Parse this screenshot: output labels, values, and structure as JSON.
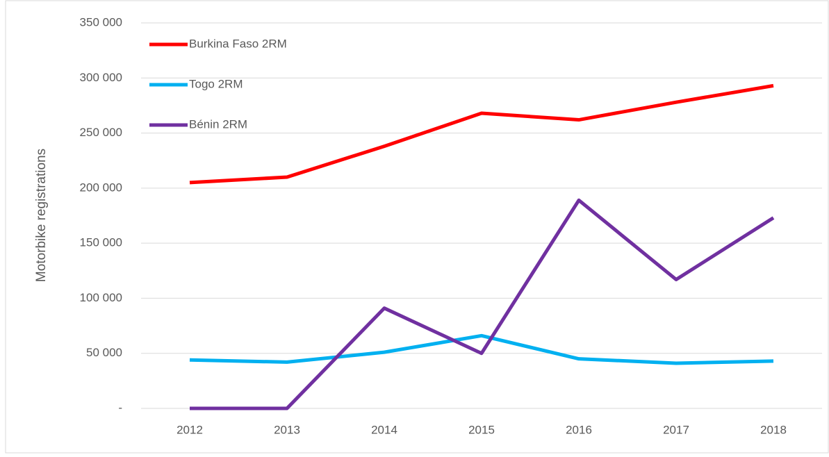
{
  "chart_data": {
    "type": "line",
    "y_label": "Motorbike registrations",
    "categories": [
      "2012",
      "2013",
      "2014",
      "2015",
      "2016",
      "2017",
      "2018"
    ],
    "series": [
      {
        "name": "Burkina Faso 2RM",
        "color": "#ff0000",
        "values": [
          205000,
          210000,
          238000,
          268000,
          262000,
          278000,
          293000
        ]
      },
      {
        "name": "Togo 2RM",
        "color": "#00b0f0",
        "values": [
          44000,
          42000,
          51000,
          66000,
          45000,
          41000,
          43000
        ]
      },
      {
        "name": "Bénin 2RM",
        "color": "#7030a0",
        "values": [
          0,
          0,
          91000,
          50000,
          189000,
          117000,
          173000
        ]
      }
    ],
    "ylim": [
      0,
      350000
    ],
    "yticks": [
      {
        "value": 0,
        "label": "-"
      },
      {
        "value": 50000,
        "label": "50 000"
      },
      {
        "value": 100000,
        "label": "100 000"
      },
      {
        "value": 150000,
        "label": "150 000"
      },
      {
        "value": 200000,
        "label": "200 000"
      },
      {
        "value": 250000,
        "label": "250 000"
      },
      {
        "value": 300000,
        "label": "300 000"
      },
      {
        "value": 350000,
        "label": "350 000"
      }
    ],
    "grid": true,
    "legend": "upper-left"
  }
}
